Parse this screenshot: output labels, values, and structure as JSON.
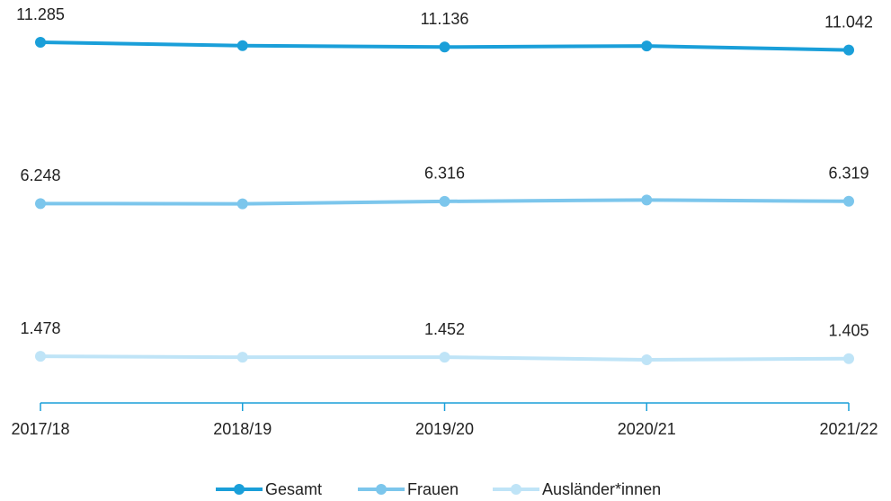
{
  "chart_data": {
    "type": "line",
    "categories": [
      "2017/18",
      "2018/19",
      "2019/20",
      "2020/21",
      "2021/22"
    ],
    "series": [
      {
        "name": "Gesamt",
        "color": "#1a9fd9",
        "values": [
          11285,
          11180,
          11136,
          11170,
          11042
        ],
        "value_labels": [
          "11.285",
          null,
          "11.136",
          null,
          "11.042"
        ]
      },
      {
        "name": "Frauen",
        "color": "#7cc6ec",
        "values": [
          6248,
          6240,
          6316,
          6360,
          6319
        ],
        "value_labels": [
          "6.248",
          null,
          "6.316",
          null,
          "6.319"
        ]
      },
      {
        "name": "Ausländer*innen",
        "color": "#bfe4f7",
        "values": [
          1478,
          1450,
          1452,
          1370,
          1405
        ],
        "value_labels": [
          "1.478",
          null,
          "1.452",
          null,
          "1.405"
        ]
      }
    ]
  }
}
